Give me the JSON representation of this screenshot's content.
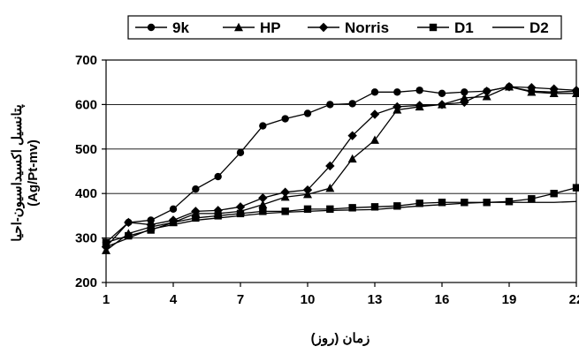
{
  "chart_data": {
    "type": "line",
    "title": "",
    "xlabel": "زمان (روز)",
    "ylabel_main": "پتانسیل اکسیداسیون-احیا",
    "ylabel_unit": "(Ag/Pt-mv)",
    "xlim": [
      1,
      22
    ],
    "ylim": [
      200,
      700
    ],
    "x_ticks": [
      "1",
      "4",
      "7",
      "10",
      "13",
      "16",
      "19",
      "22"
    ],
    "y_ticks": [
      "200",
      "300",
      "400",
      "500",
      "600",
      "700"
    ],
    "grid": "horizontal",
    "legend_position": "top",
    "x": [
      1,
      2,
      3,
      4,
      5,
      6,
      7,
      8,
      9,
      10,
      11,
      12,
      13,
      14,
      15,
      16,
      17,
      18,
      19,
      20,
      21,
      22
    ],
    "series": [
      {
        "name": "9k",
        "marker": "circle",
        "values": [
          290,
          335,
          340,
          365,
          410,
          438,
          492,
          552,
          568,
          580,
          600,
          602,
          628,
          628,
          632,
          625,
          628,
          630,
          640,
          630,
          628,
          630
        ]
      },
      {
        "name": "HP",
        "marker": "triangle",
        "values": [
          272,
          310,
          325,
          335,
          355,
          355,
          360,
          375,
          392,
          398,
          412,
          478,
          520,
          588,
          595,
          600,
          615,
          618,
          640,
          628,
          625,
          625
        ]
      },
      {
        "name": "Norris",
        "marker": "diamond",
        "values": [
          280,
          335,
          330,
          340,
          360,
          362,
          370,
          390,
          403,
          408,
          462,
          530,
          578,
          595,
          598,
          600,
          605,
          630,
          640,
          638,
          635,
          632
        ]
      },
      {
        "name": "D1",
        "marker": "square",
        "values": [
          290,
          305,
          318,
          335,
          345,
          350,
          355,
          360,
          360,
          365,
          365,
          368,
          370,
          372,
          378,
          380,
          380,
          380,
          382,
          388,
          400,
          413
        ]
      },
      {
        "name": "D2",
        "marker": "none",
        "values": [
          280,
          300,
          320,
          330,
          340,
          345,
          350,
          355,
          358,
          360,
          362,
          363,
          364,
          368,
          372,
          375,
          378,
          380,
          380,
          380,
          380,
          382
        ]
      }
    ]
  }
}
